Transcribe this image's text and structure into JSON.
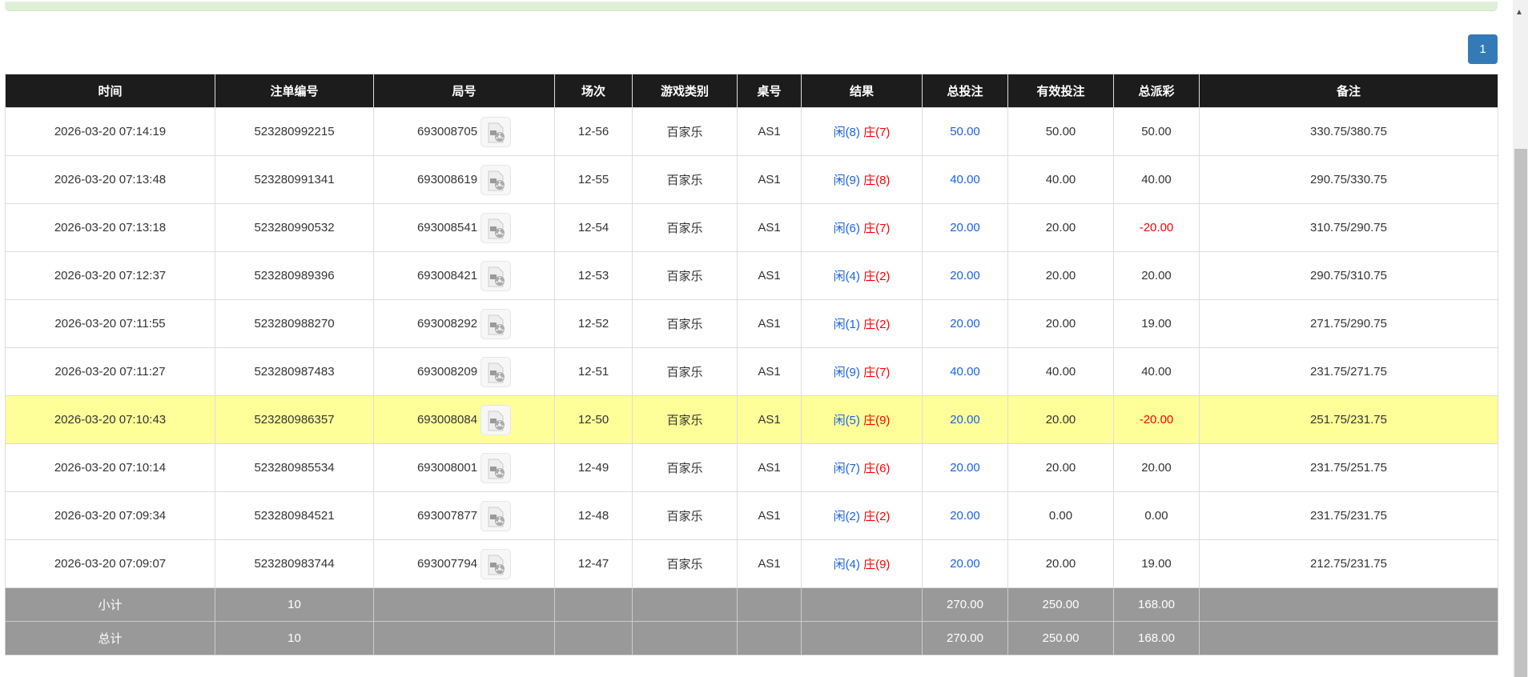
{
  "pagination": {
    "current": "1"
  },
  "table": {
    "headers": [
      "时间",
      "注单编号",
      "局号",
      "场次",
      "游戏类别",
      "桌号",
      "结果",
      "总投注",
      "有效投注",
      "总派彩",
      "备注"
    ],
    "rows": [
      {
        "time": "2026-03-20 07:14:19",
        "bet_id": "523280992215",
        "round": "693008705",
        "session": "12-56",
        "game": "百家乐",
        "table": "AS1",
        "player": "闲(8)",
        "banker": "庄(7)",
        "total": "50.00",
        "valid": "50.00",
        "payout": "50.00",
        "payout_negative": false,
        "note": "330.75/380.75"
      },
      {
        "time": "2026-03-20 07:13:48",
        "bet_id": "523280991341",
        "round": "693008619",
        "session": "12-55",
        "game": "百家乐",
        "table": "AS1",
        "player": "闲(9)",
        "banker": "庄(8)",
        "total": "40.00",
        "valid": "40.00",
        "payout": "40.00",
        "payout_negative": false,
        "note": "290.75/330.75"
      },
      {
        "time": "2026-03-20 07:13:18",
        "bet_id": "523280990532",
        "round": "693008541",
        "session": "12-54",
        "game": "百家乐",
        "table": "AS1",
        "player": "闲(6)",
        "banker": "庄(7)",
        "total": "20.00",
        "valid": "20.00",
        "payout": "-20.00",
        "payout_negative": true,
        "note": "310.75/290.75"
      },
      {
        "time": "2026-03-20 07:12:37",
        "bet_id": "523280989396",
        "round": "693008421",
        "session": "12-53",
        "game": "百家乐",
        "table": "AS1",
        "player": "闲(4)",
        "banker": "庄(2)",
        "total": "20.00",
        "valid": "20.00",
        "payout": "20.00",
        "payout_negative": false,
        "note": "290.75/310.75"
      },
      {
        "time": "2026-03-20 07:11:55",
        "bet_id": "523280988270",
        "round": "693008292",
        "session": "12-52",
        "game": "百家乐",
        "table": "AS1",
        "player": "闲(1)",
        "banker": "庄(2)",
        "total": "20.00",
        "valid": "20.00",
        "payout": "19.00",
        "payout_negative": false,
        "note": "271.75/290.75"
      },
      {
        "time": "2026-03-20 07:11:27",
        "bet_id": "523280987483",
        "round": "693008209",
        "session": "12-51",
        "game": "百家乐",
        "table": "AS1",
        "player": "闲(9)",
        "banker": "庄(7)",
        "total": "40.00",
        "valid": "40.00",
        "payout": "40.00",
        "payout_negative": false,
        "note": "231.75/271.75"
      },
      {
        "time": "2026-03-20 07:10:43",
        "bet_id": "523280986357",
        "round": "693008084",
        "session": "12-50",
        "game": "百家乐",
        "table": "AS1",
        "player": "闲(5)",
        "banker": "庄(9)",
        "total": "20.00",
        "valid": "20.00",
        "payout": "-20.00",
        "payout_negative": true,
        "note": "251.75/231.75",
        "highlighted": true
      },
      {
        "time": "2026-03-20 07:10:14",
        "bet_id": "523280985534",
        "round": "693008001",
        "session": "12-49",
        "game": "百家乐",
        "table": "AS1",
        "player": "闲(7)",
        "banker": "庄(6)",
        "total": "20.00",
        "valid": "20.00",
        "payout": "20.00",
        "payout_negative": false,
        "note": "231.75/251.75"
      },
      {
        "time": "2026-03-20 07:09:34",
        "bet_id": "523280984521",
        "round": "693007877",
        "session": "12-48",
        "game": "百家乐",
        "table": "AS1",
        "player": "闲(2)",
        "banker": "庄(2)",
        "total": "20.00",
        "valid": "0.00",
        "payout": "0.00",
        "payout_negative": false,
        "note": "231.75/231.75"
      },
      {
        "time": "2026-03-20 07:09:07",
        "bet_id": "523280983744",
        "round": "693007794",
        "session": "12-47",
        "game": "百家乐",
        "table": "AS1",
        "player": "闲(4)",
        "banker": "庄(9)",
        "total": "20.00",
        "valid": "20.00",
        "payout": "19.00",
        "payout_negative": false,
        "note": "212.75/231.75"
      }
    ],
    "summary": [
      {
        "label": "小计",
        "count": "10",
        "total": "270.00",
        "valid": "250.00",
        "payout": "168.00"
      },
      {
        "label": "总计",
        "count": "10",
        "total": "270.00",
        "valid": "250.00",
        "payout": "168.00"
      }
    ]
  },
  "colors": {
    "header_bg": "#1c1c1c",
    "highlight": "#ffff99",
    "player": "#1a62e6",
    "banker": "#ff0000",
    "summary_bg": "#999999",
    "pager": "#337ab7"
  }
}
